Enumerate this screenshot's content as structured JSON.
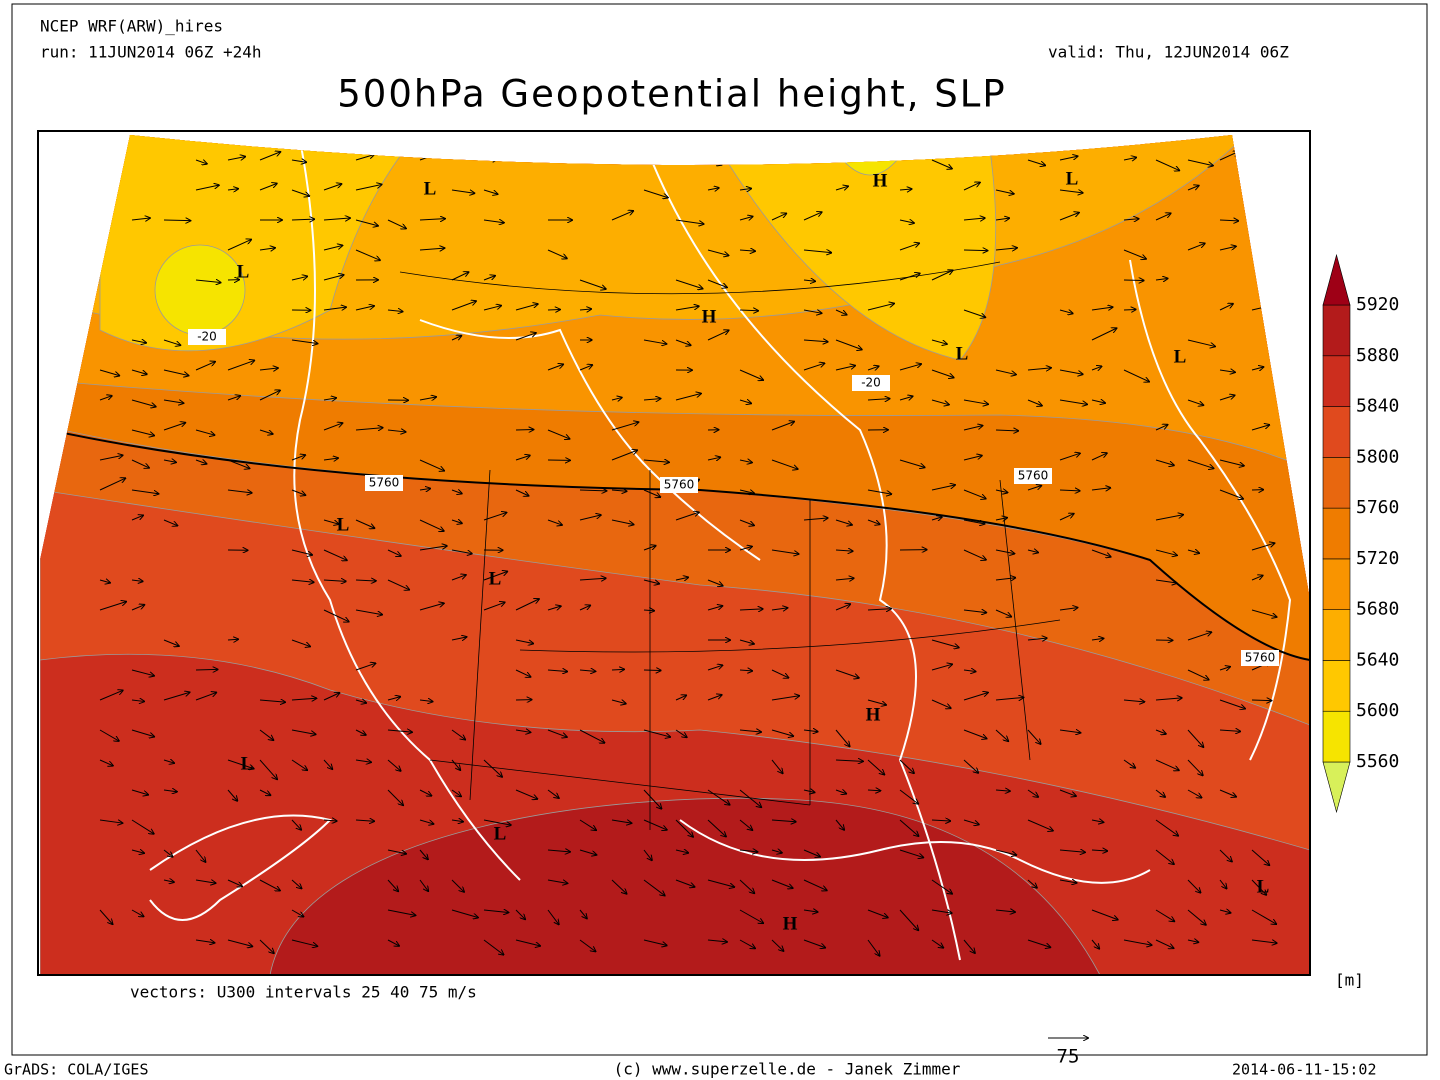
{
  "header": {
    "model": "NCEP WRF(ARW)_hires",
    "run": "run: 11JUN2014 06Z +24h",
    "valid": "valid: Thu, 12JUN2014 06Z",
    "title": "500hPa Geopotential height, SLP"
  },
  "map": {
    "centers": [
      "L",
      "L",
      "H",
      "L",
      "H",
      "L",
      "L",
      "L",
      "L",
      "H",
      "L",
      "L",
      "H",
      "L"
    ],
    "contour_labels": [
      "5760",
      "5760",
      "5760",
      "5760",
      "-20",
      "-20"
    ]
  },
  "colorbar": {
    "levels": [
      5560,
      5600,
      5640,
      5680,
      5720,
      5760,
      5800,
      5840,
      5880,
      5920
    ],
    "colors": [
      "#d8f05a",
      "#f6e400",
      "#ffc800",
      "#fdae00",
      "#f99400",
      "#ef7c00",
      "#e8670f",
      "#e04a1e",
      "#cc2e1e",
      "#b31b1b",
      "#9e0016"
    ],
    "unit": "[m]"
  },
  "footer": {
    "vectors": "vectors: U300 intervals 25 40 75 m/s",
    "reference": "75",
    "software": "GrADS: COLA/IGES",
    "copyright": "(c) www.superzelle.de - Janek Zimmer",
    "timestamp": "2014-06-11-15:02"
  }
}
